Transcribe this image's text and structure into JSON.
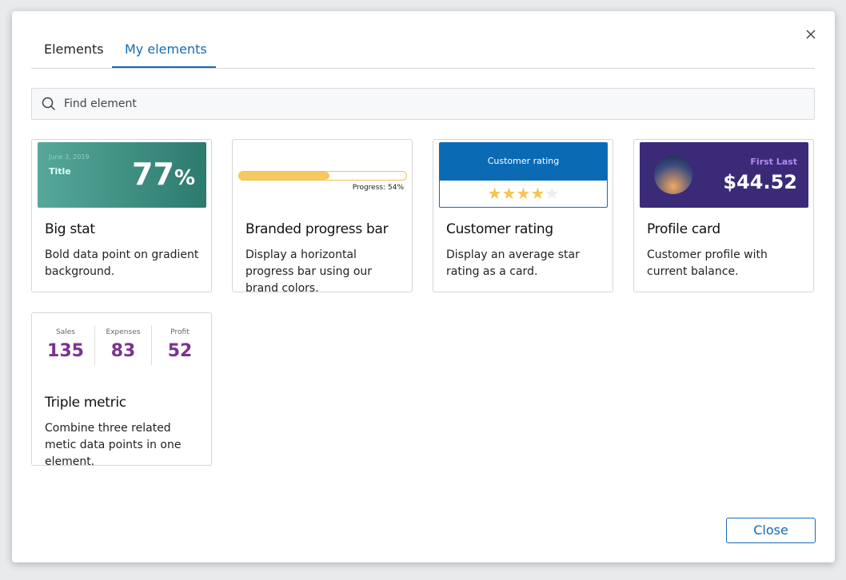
{
  "tabs": [
    "Elements",
    "My elements"
  ],
  "search": {
    "placeholder": "Find element"
  },
  "cards": [
    {
      "title": "Big stat",
      "description": "Bold data point on gradient background.",
      "preview": {
        "date": "June 3, 2019",
        "label": "Title",
        "number": "77",
        "unit": "%"
      }
    },
    {
      "title": "Branded progress bar",
      "description": "Display a horizontal progress bar using our brand colors.",
      "preview": {
        "progress": 54,
        "label": "Progress: 54%"
      }
    },
    {
      "title": "Customer rating",
      "description": "Display an average star rating as a card.",
      "preview": {
        "heading": "Customer rating",
        "rating": 4,
        "stars": 5
      }
    },
    {
      "title": "Profile card",
      "description": "Customer profile with current balance.",
      "preview": {
        "name": "First Last",
        "balance": "$44.52"
      }
    },
    {
      "title": "Triple metric",
      "description": "Combine three related metic data points in one element.",
      "preview": {
        "metrics": [
          {
            "label": "Sales",
            "value": "135"
          },
          {
            "label": "Expenses",
            "value": "83"
          },
          {
            "label": "Profit",
            "value": "52"
          }
        ]
      }
    }
  ],
  "close_button": "Close"
}
